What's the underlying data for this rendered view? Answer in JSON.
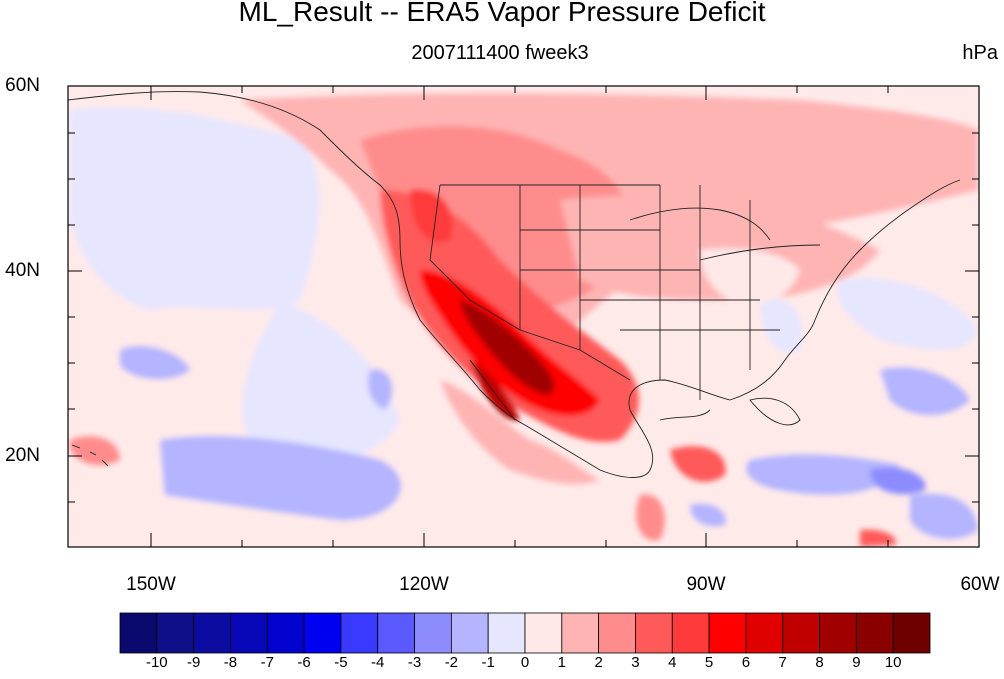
{
  "title": "ML_Result -- ERA5 Vapor Pressure Deficit",
  "subtitle": "2007111400 fweek3",
  "units": "hPa",
  "map": {
    "lat_labels": [
      "60N",
      "40N",
      "20N"
    ],
    "lon_labels": [
      "150W",
      "120W",
      "90W",
      "60W"
    ],
    "extent": {
      "lon_min": -160,
      "lon_max": -60,
      "lat_min": 10,
      "lat_max": 60
    },
    "field_description": "Vapor pressure deficit anomaly; strongest positive values (7-10 hPa) over the US Southwest, Baja California and northern Mexico; moderate positive values across western and central North America; weak negative values over the eastern Pacific, Caribbean and subtropical Atlantic"
  },
  "colorbar": {
    "labels": [
      "-10",
      "-9",
      "-8",
      "-7",
      "-6",
      "-5",
      "-4",
      "-3",
      "-2",
      "-1",
      "0",
      "1",
      "2",
      "3",
      "4",
      "5",
      "6",
      "7",
      "8",
      "9",
      "10"
    ],
    "colors": [
      "#0a0a6e",
      "#0f0f8a",
      "#0c0ca0",
      "#0808b8",
      "#0303d0",
      "#0000f0",
      "#3a3aff",
      "#5a5aff",
      "#8c8cff",
      "#b4b4ff",
      "#e6e6ff",
      "#ffe8e8",
      "#ffb4b4",
      "#ff8c8c",
      "#ff5a5a",
      "#ff3a3a",
      "#ff0000",
      "#e00000",
      "#c00000",
      "#a00000",
      "#8a0000",
      "#6e0000"
    ]
  }
}
